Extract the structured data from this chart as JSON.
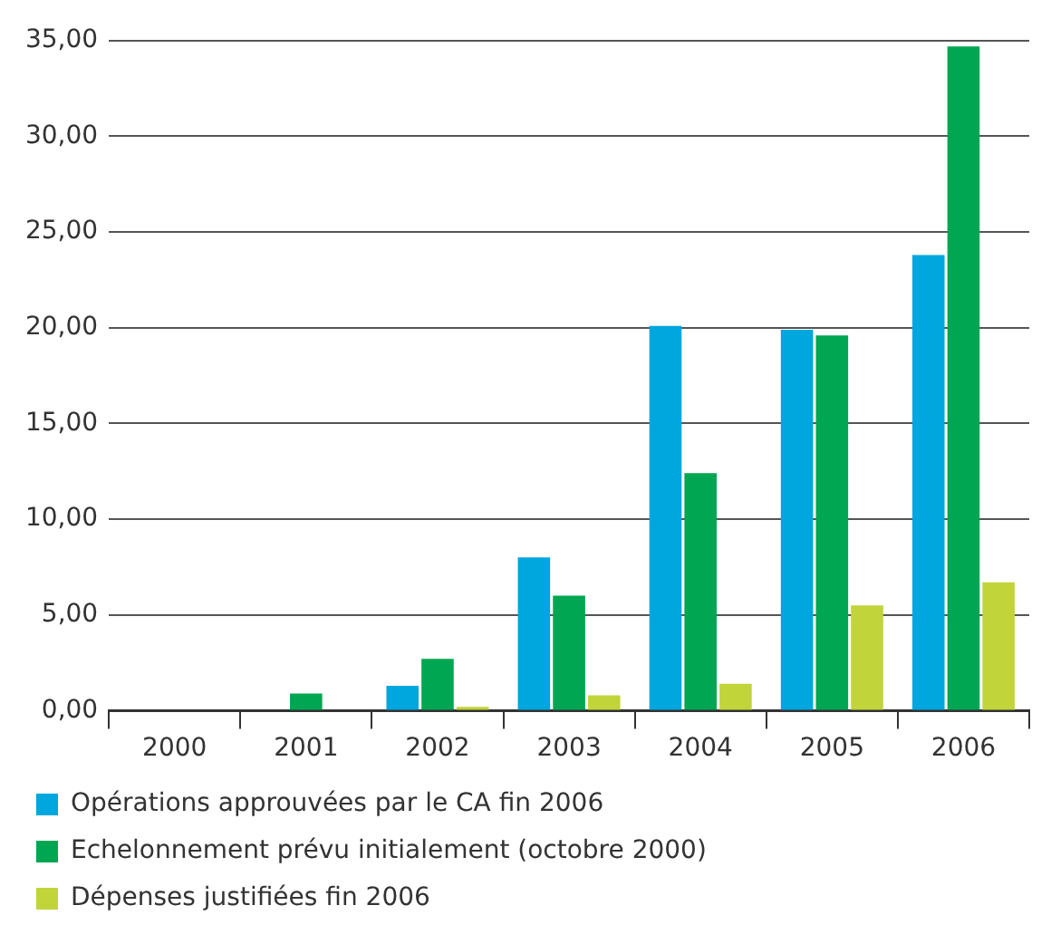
{
  "chart_data": {
    "type": "bar",
    "categories": [
      "2000",
      "2001",
      "2002",
      "2003",
      "2004",
      "2005",
      "2006"
    ],
    "series": [
      {
        "name": "Opérations approuvées par le CA fin 2006",
        "color": "#00a6de",
        "values": [
          0,
          0,
          1.3,
          8.0,
          20.1,
          19.9,
          23.8
        ]
      },
      {
        "name": "Echelonnement prévu initialement (octobre 2000)",
        "color": "#00a651",
        "values": [
          0,
          0.9,
          2.7,
          6.0,
          12.4,
          19.6,
          34.7
        ]
      },
      {
        "name": "Dépenses justifiées fin 2006",
        "color": "#c1d43a",
        "values": [
          0,
          0,
          0.2,
          0.8,
          1.4,
          5.5,
          6.7
        ]
      }
    ],
    "ylim": [
      0,
      35
    ],
    "yticks": [
      {
        "value": 0,
        "label": "0,00"
      },
      {
        "value": 5,
        "label": "5,00"
      },
      {
        "value": 10,
        "label": "10,00"
      },
      {
        "value": 15,
        "label": "15,00"
      },
      {
        "value": 20,
        "label": "20,00"
      },
      {
        "value": 25,
        "label": "25,00"
      },
      {
        "value": 30,
        "label": "30,00"
      },
      {
        "value": 35,
        "label": "35,00"
      }
    ],
    "grid": "y",
    "legend": "bottom left"
  }
}
